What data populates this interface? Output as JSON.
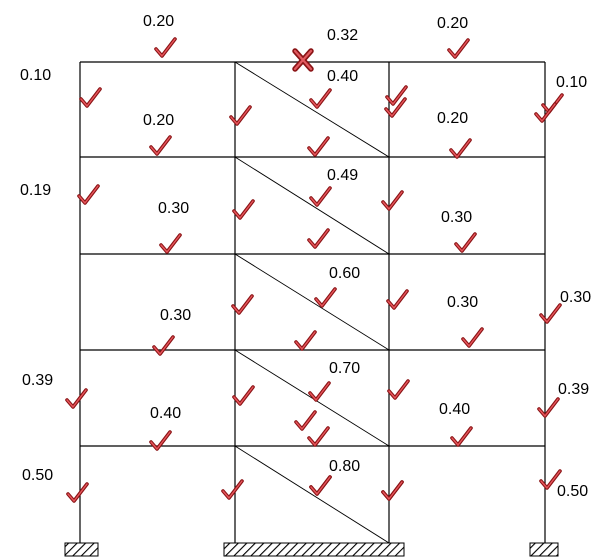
{
  "diagram": {
    "colors": {
      "frame": "#000000",
      "check_dark": "#8a1416",
      "check_light": "#e8565c",
      "fail_dark": "#8a1416",
      "fail_light": "#e25a60"
    },
    "icons": {
      "pass": "check-mark-icon",
      "fail": "cross-mark-icon",
      "support": "hatched-fixed-support-icon"
    },
    "labels": [
      "0.20",
      "0.32",
      "0.20",
      "0.10",
      "0.40",
      "0.10",
      "0.20",
      "0.20",
      "0.49",
      "0.19",
      "0.30",
      "0.30",
      "0.60",
      "0.30",
      "0.30",
      "0.30",
      "0.70",
      "0.39",
      "0.39",
      "0.40",
      "0.40",
      "0.80",
      "0.50",
      "0.50"
    ],
    "member_status": [
      "pass",
      "fail",
      "pass",
      "pass",
      "pass",
      "pass",
      "pass",
      "pass",
      "pass",
      "pass",
      "pass",
      "pass",
      "pass",
      "pass",
      "pass",
      "pass",
      "pass",
      "pass",
      "pass",
      "pass",
      "pass",
      "pass",
      "pass",
      "pass",
      "pass",
      "pass",
      "pass",
      "pass",
      "pass",
      "pass",
      "pass",
      "pass",
      "pass",
      "pass",
      "pass",
      "pass",
      "pass",
      "pass",
      "pass",
      "pass",
      "pass",
      "pass",
      "pass"
    ]
  }
}
